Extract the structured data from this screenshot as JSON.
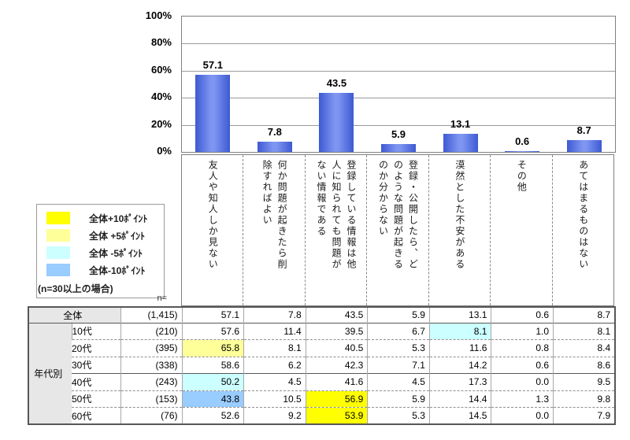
{
  "chart_data": {
    "type": "bar",
    "title": "",
    "categories": [
      "友人や知人しか見ない",
      "何か問題が起きたら削除すればよい",
      "登録している情報は他人に知られても問題がない情報である",
      "登録・公開したら、どのような問題が起きるのか分からない",
      "漠然とした不安がある",
      "その他",
      "あてはまるものはない"
    ],
    "categories_display": [
      "友人や知人しか見ない",
      "何か問題が起きたら削\n除すればよい",
      "登録している情報は他\n人に知られても問題が\nない情報である",
      "登録・公開したら、ど\nのような問題が起きる\nのか分からない",
      "漠然とした不安がある",
      "その他",
      "あてはまるものはない"
    ],
    "values": [
      57.1,
      7.8,
      43.5,
      5.9,
      13.1,
      0.6,
      8.7
    ],
    "value_labels": [
      "57.1",
      "7.8",
      "43.5",
      "5.9",
      "13.1",
      "0.6",
      "8.7"
    ],
    "ylim": [
      0,
      100
    ],
    "ytick_labels": [
      "100%",
      "80%",
      "60%",
      "40%",
      "20%",
      "0%"
    ],
    "grid": true,
    "legend_position": "left",
    "bar_color": "#5a77e6"
  },
  "legend": {
    "items": [
      {
        "key": "plus10",
        "label": "全体+10ﾎﾟｲﾝﾄ",
        "color": "#ffff00"
      },
      {
        "key": "plus5",
        "label": "全体 +5ﾎﾟｲﾝﾄ",
        "color": "#ffff99"
      },
      {
        "key": "minus5",
        "label": "全体 -5ﾎﾟｲﾝﾄ",
        "color": "#ccffff"
      },
      {
        "key": "minus10",
        "label": "全体-10ﾎﾟｲﾝﾄ",
        "color": "#99ccff"
      }
    ],
    "note": "(n=30以上の場合)"
  },
  "table": {
    "n_header": "n=",
    "group_label": "年代別",
    "highlight_colors": {
      "plus10": "#ffff00",
      "plus5": "#ffff99",
      "minus5": "#ccffff",
      "minus10": "#99ccff"
    },
    "rows": [
      {
        "label": "全体",
        "n": "(1,415)",
        "values": [
          "57.1",
          "7.8",
          "43.5",
          "5.9",
          "13.1",
          "0.6",
          "8.7"
        ],
        "highlights": [
          null,
          null,
          null,
          null,
          null,
          null,
          null
        ]
      },
      {
        "label": "10代",
        "n": "(210)",
        "values": [
          "57.6",
          "11.4",
          "39.5",
          "6.7",
          "8.1",
          "1.0",
          "8.1"
        ],
        "highlights": [
          null,
          null,
          null,
          null,
          "minus5",
          null,
          null
        ]
      },
      {
        "label": "20代",
        "n": "(395)",
        "values": [
          "65.8",
          "8.1",
          "40.5",
          "5.3",
          "11.6",
          "0.8",
          "8.4"
        ],
        "highlights": [
          "plus5",
          null,
          null,
          null,
          null,
          null,
          null
        ]
      },
      {
        "label": "30代",
        "n": "(338)",
        "values": [
          "58.6",
          "6.2",
          "42.3",
          "7.1",
          "14.2",
          "0.6",
          "8.6"
        ],
        "highlights": [
          null,
          null,
          null,
          null,
          null,
          null,
          null
        ]
      },
      {
        "label": "40代",
        "n": "(243)",
        "values": [
          "50.2",
          "4.5",
          "41.6",
          "4.5",
          "17.3",
          "0.0",
          "9.5"
        ],
        "highlights": [
          "minus5",
          null,
          null,
          null,
          null,
          null,
          null
        ]
      },
      {
        "label": "50代",
        "n": "(153)",
        "values": [
          "43.8",
          "10.5",
          "56.9",
          "5.9",
          "14.4",
          "1.3",
          "9.8"
        ],
        "highlights": [
          "minus10",
          null,
          "plus10",
          null,
          null,
          null,
          null
        ]
      },
      {
        "label": "60代",
        "n": "(76)",
        "values": [
          "52.6",
          "9.2",
          "53.9",
          "5.3",
          "14.5",
          "0.0",
          "7.9"
        ],
        "highlights": [
          null,
          null,
          "plus10",
          null,
          null,
          null,
          null
        ]
      }
    ]
  }
}
